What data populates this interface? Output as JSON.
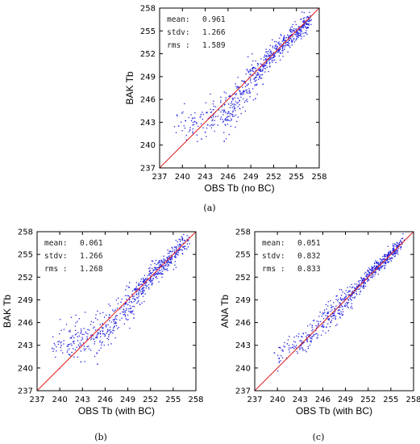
{
  "figure": {
    "captions": [
      "(a)",
      "(b)",
      "(c)"
    ]
  },
  "chart_data": [
    {
      "type": "scatter",
      "panel": "a",
      "xlabel": "OBS Tb (no BC)",
      "ylabel": "BAK Tb",
      "xlim": [
        237,
        258
      ],
      "ylim": [
        237,
        258
      ],
      "xticks": [
        "237",
        "240",
        "243",
        "246",
        "249",
        "252",
        "255",
        "258"
      ],
      "yticks": [
        "237",
        "240",
        "243",
        "246",
        "249",
        "252",
        "255",
        "258"
      ],
      "reference_line": "y = x",
      "stats": [
        {
          "label": "mean:",
          "value": "0.961"
        },
        {
          "label": "stdv:",
          "value": "1.266"
        },
        {
          "label": "rms :",
          "value": "1.589"
        }
      ],
      "point_color": "#1f1fe0",
      "line_color": "#e02020",
      "cloud": {
        "n": 650,
        "seed": 11,
        "xmin": 238.8,
        "xmax": 256.8,
        "offset": 0.961,
        "spread": 1.266,
        "shape": [
          [
            238.8,
            3.8
          ],
          [
            243,
            0.5
          ],
          [
            246,
            -1.6
          ],
          [
            249,
            -0.6
          ],
          [
            252,
            0.1
          ],
          [
            255,
            -0.1
          ],
          [
            256.8,
            -0.5
          ]
        ]
      },
      "points": [
        [
          239.5,
          242.5
        ],
        [
          240.4,
          243.2
        ],
        [
          241.0,
          242.0
        ],
        [
          242.5,
          240.8
        ],
        [
          244.0,
          242.6
        ],
        [
          245.5,
          240.5
        ],
        [
          246.6,
          244.0
        ],
        [
          248.0,
          247.0
        ],
        [
          249.6,
          246.1
        ],
        [
          250.6,
          248.0
        ],
        [
          252.0,
          251.5
        ],
        [
          252.6,
          253.4
        ],
        [
          253.4,
          252.6
        ],
        [
          254.2,
          254.0
        ],
        [
          255.2,
          254.8
        ],
        [
          256.0,
          255.8
        ]
      ]
    },
    {
      "type": "scatter",
      "panel": "b",
      "xlabel": "OBS Tb (with BC)",
      "ylabel": "BAK Tb",
      "xlim": [
        237,
        258
      ],
      "ylim": [
        237,
        258
      ],
      "xticks": [
        "237",
        "240",
        "243",
        "246",
        "249",
        "252",
        "255",
        "258"
      ],
      "yticks": [
        "237",
        "240",
        "243",
        "246",
        "249",
        "252",
        "255",
        "258"
      ],
      "reference_line": "y = x",
      "stats": [
        {
          "label": "mean:",
          "value": "0.061"
        },
        {
          "label": "stdv:",
          "value": "1.266"
        },
        {
          "label": "rms :",
          "value": "1.268"
        }
      ],
      "point_color": "#1f1fe0",
      "line_color": "#e02020",
      "cloud": {
        "n": 650,
        "seed": 23,
        "xmin": 238.8,
        "xmax": 256.8,
        "offset": 0.061,
        "spread": 1.266,
        "shape": [
          [
            238.8,
            4.0
          ],
          [
            243,
            1.0
          ],
          [
            246,
            -1.3
          ],
          [
            249,
            -0.6
          ],
          [
            252,
            0.0
          ],
          [
            255,
            -0.2
          ],
          [
            256.8,
            -0.3
          ]
        ]
      },
      "points": [
        [
          239.0,
          242.6
        ],
        [
          240.2,
          243.0
        ],
        [
          241.2,
          241.8
        ],
        [
          242.8,
          240.8
        ],
        [
          244.5,
          243.8
        ],
        [
          245.0,
          240.5
        ],
        [
          246.5,
          244.4
        ],
        [
          248.3,
          247.4
        ],
        [
          249.8,
          246.6
        ],
        [
          250.6,
          248.4
        ],
        [
          252.0,
          251.8
        ],
        [
          252.8,
          253.0
        ],
        [
          253.6,
          252.4
        ],
        [
          254.6,
          254.3
        ],
        [
          255.4,
          255.0
        ]
      ]
    },
    {
      "type": "scatter",
      "panel": "c",
      "xlabel": "OBS Tb (with BC)",
      "ylabel": "ANA Tb",
      "xlim": [
        237,
        258
      ],
      "ylim": [
        237,
        258
      ],
      "xticks": [
        "237",
        "240",
        "243",
        "246",
        "249",
        "252",
        "255",
        "258"
      ],
      "yticks": [
        "237",
        "240",
        "243",
        "246",
        "249",
        "252",
        "255",
        "258"
      ],
      "reference_line": "y = x",
      "stats": [
        {
          "label": "mean:",
          "value": "0.051"
        },
        {
          "label": "stdv:",
          "value": "0.832"
        },
        {
          "label": "rms :",
          "value": "0.833"
        }
      ],
      "point_color": "#1f1fe0",
      "line_color": "#e02020",
      "cloud": {
        "n": 650,
        "seed": 37,
        "xmin": 239.3,
        "xmax": 256.5,
        "offset": 0.051,
        "spread": 0.832,
        "shape": [
          [
            239.3,
            2.2
          ],
          [
            243,
            0.2
          ],
          [
            246,
            0.0
          ],
          [
            249,
            -0.1
          ],
          [
            252,
            0.1
          ],
          [
            256.5,
            0.0
          ]
        ]
      },
      "points": [
        [
          239.6,
          242.0
        ],
        [
          240.2,
          241.3
        ],
        [
          241.3,
          243.2
        ],
        [
          243.0,
          243.6
        ],
        [
          244.6,
          245.6
        ],
        [
          246.6,
          247.2
        ],
        [
          247.8,
          249.5
        ],
        [
          248.9,
          248.2
        ],
        [
          250.5,
          250.6
        ],
        [
          252.4,
          252.6
        ],
        [
          253.5,
          253.0
        ],
        [
          254.6,
          254.9
        ],
        [
          255.6,
          255.4
        ]
      ]
    }
  ]
}
